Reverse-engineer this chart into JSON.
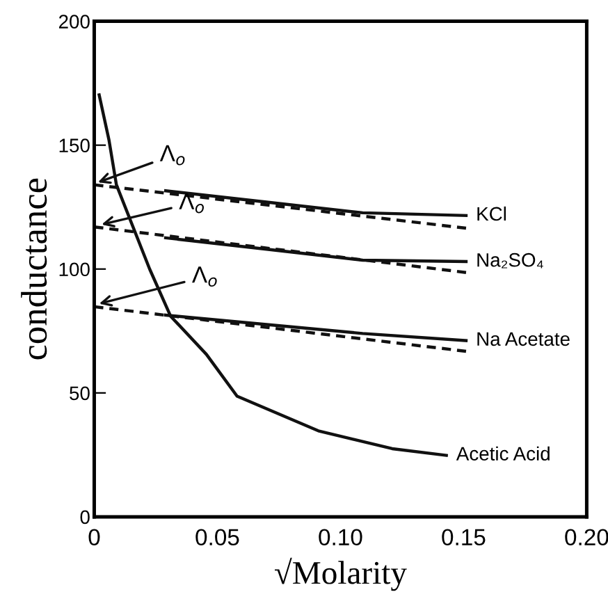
{
  "chart_data": {
    "type": "line",
    "xlabel": "√Molarity",
    "ylabel": "conductance",
    "xlim": [
      0,
      0.2
    ],
    "ylim": [
      0,
      200
    ],
    "xticks": [
      0,
      0.05,
      {
        "value": 0.1,
        "label": "0.10"
      },
      0.15,
      {
        "value": 0.2,
        "label": "0.20"
      }
    ],
    "yticks": [
      0,
      50,
      100,
      150,
      200
    ],
    "grid": false,
    "legend": false,
    "marker": "none",
    "series": [
      {
        "name": "KCl",
        "color": "#111111",
        "x": [
          0.029,
          0.07,
          0.109,
          0.151
        ],
        "values": [
          131.6,
          127,
          122.7,
          121.6
        ]
      },
      {
        "name": "Na₂SO₄",
        "color": "#111111",
        "x": [
          0.029,
          0.07,
          0.109,
          0.151
        ],
        "values": [
          112.6,
          108,
          103.6,
          103
        ]
      },
      {
        "name": "Na Acetate",
        "color": "#111111",
        "x": [
          0.029,
          0.109,
          0.151
        ],
        "values": [
          81.4,
          74,
          71.1
        ]
      },
      {
        "name": "Acetic Acid",
        "color": "#111111",
        "x": [
          0.002,
          0.006,
          0.009,
          0.0225,
          0.031,
          0.0456,
          0.058,
          0.091,
          0.121,
          0.143
        ],
        "values": [
          170.3,
          152,
          134,
          100,
          81,
          65.5,
          48.7,
          34.7,
          27.5,
          24.8
        ]
      },
      {
        "color": "#111111",
        "line_style": "dashed",
        "x": [
          0,
          0.151
        ],
        "values": [
          134,
          116.5
        ]
      },
      {
        "color": "#111111",
        "line_style": "dashed",
        "x": [
          0,
          0.151
        ],
        "values": [
          117,
          98.6
        ]
      },
      {
        "color": "#111111",
        "line_style": "dashed",
        "x": [
          0,
          0.151
        ],
        "values": [
          84.8,
          66.8
        ]
      }
    ],
    "annotations": [
      {
        "text": "Λ$_{o}$",
        "x": 0.0015,
        "y": 135
      },
      {
        "text": "Λ$_{o}$",
        "x": 0.003,
        "y": 118
      },
      {
        "text": "Λ$_{o}$",
        "x": 0.002,
        "y": 86
      }
    ]
  }
}
